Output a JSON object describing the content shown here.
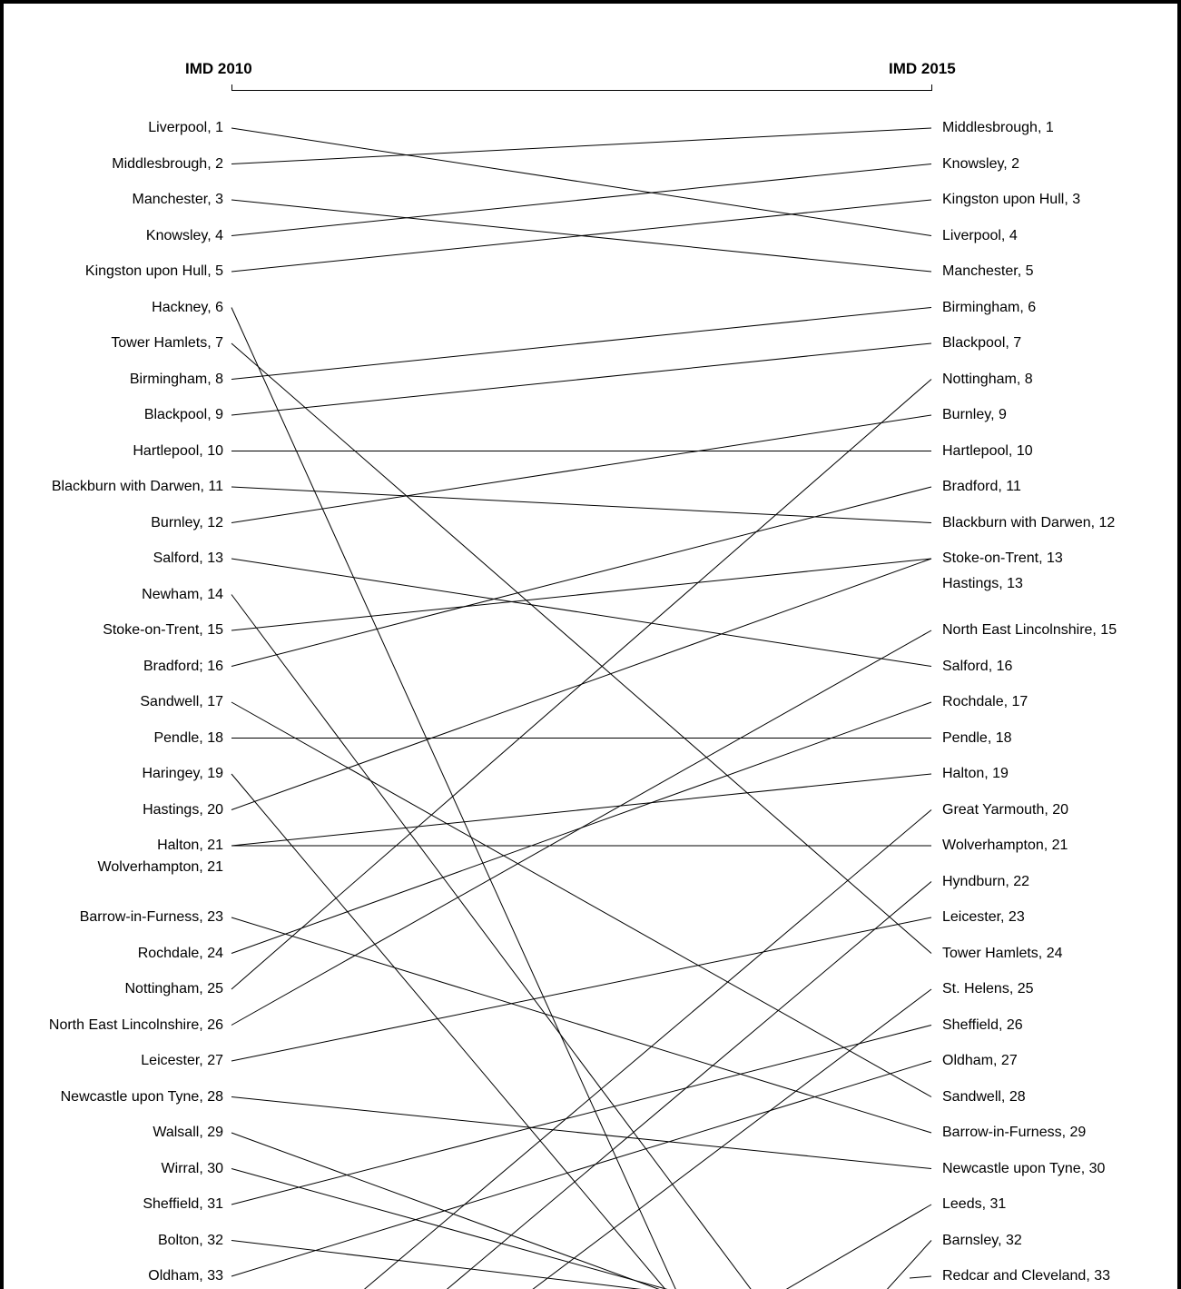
{
  "headers": {
    "left": "IMD 2010",
    "right": "IMD 2015"
  },
  "left_labels": [
    "Liverpool, 1",
    "Middlesbrough, 2",
    "Manchester, 3",
    "Knowsley, 4",
    "Kingston upon Hull, 5",
    "Hackney, 6",
    "Tower Hamlets, 7",
    "Birmingham, 8",
    "Blackpool, 9",
    "Hartlepool, 10",
    "Blackburn with Darwen, 11",
    "Burnley, 12",
    "Salford, 13",
    "Newham, 14",
    "Stoke-on-Trent, 15",
    "Bradford; 16",
    "Sandwell, 17",
    "Pendle, 18",
    "Haringey, 19",
    "Hastings, 20",
    "Halton, 21",
    "Wolverhampton, 21",
    "Barrow-in-Furness, 23",
    "Rochdale, 24",
    "Nottingham, 25",
    "North East Lincolnshire, 26",
    "Leicester, 27",
    "Newcastle upon Tyne, 28",
    "Walsall, 29",
    "Wirral, 30",
    "Sheffield, 31",
    "Bolton, 32",
    "Oldham, 33"
  ],
  "right_labels": [
    "Middlesbrough, 1",
    "Knowsley, 2",
    "Kingston upon Hull, 3",
    "Liverpool, 4",
    "Manchester, 5",
    "Birmingham, 6",
    "Blackpool, 7",
    "Nottingham, 8",
    "Burnley, 9",
    "Hartlepool, 10",
    "Bradford, 11",
    "Blackburn with Darwen, 12",
    "Stoke-on-Trent, 13",
    "Hastings, 13",
    "North East Lincolnshire, 15",
    "Salford, 16",
    "Rochdale, 17",
    "Pendle, 18",
    "Halton, 19",
    "Great Yarmouth, 20",
    "Wolverhampton, 21",
    "Hyndburn, 22",
    "Leicester, 23",
    "Tower Hamlets, 24",
    "St. Helens, 25",
    "Sheffield, 26",
    "Oldham, 27",
    "Sandwell, 28",
    "Barrow-in-Furness, 29",
    "Newcastle upon Tyne, 30",
    "Leeds, 31",
    "Barnsley, 32",
    "Redcar and Cleveland, 33"
  ],
  "connections": [
    {
      "from": 1,
      "to": 4
    },
    {
      "from": 2,
      "to": 1
    },
    {
      "from": 3,
      "to": 5
    },
    {
      "from": 4,
      "to": 2
    },
    {
      "from": 5,
      "to": 3
    },
    {
      "from": 6,
      "to": null
    },
    {
      "from": 7,
      "to": 24
    },
    {
      "from": 8,
      "to": 6
    },
    {
      "from": 9,
      "to": 7
    },
    {
      "from": 10,
      "to": 10
    },
    {
      "from": 11,
      "to": 12
    },
    {
      "from": 12,
      "to": 9
    },
    {
      "from": 13,
      "to": 16
    },
    {
      "from": 14,
      "to": null
    },
    {
      "from": 15,
      "to": 13
    },
    {
      "from": 16,
      "to": 11
    },
    {
      "from": 17,
      "to": 28
    },
    {
      "from": 18,
      "to": 18
    },
    {
      "from": 19,
      "to": null
    },
    {
      "from": 20,
      "to": 13
    },
    {
      "from": 21,
      "to": 19
    },
    {
      "from": 21,
      "to": 21
    },
    {
      "from": 23,
      "to": 29
    },
    {
      "from": 24,
      "to": 17
    },
    {
      "from": 25,
      "to": 8
    },
    {
      "from": 26,
      "to": 15
    },
    {
      "from": 27,
      "to": 23
    },
    {
      "from": 28,
      "to": 30
    },
    {
      "from": 29,
      "to": null
    },
    {
      "from": 30,
      "to": null
    },
    {
      "from": 31,
      "to": 26
    },
    {
      "from": 32,
      "to": null
    },
    {
      "from": 33,
      "to": 27
    },
    {
      "from": null,
      "to": 20
    },
    {
      "from": null,
      "to": 22
    },
    {
      "from": null,
      "to": 25
    },
    {
      "from": null,
      "to": 31
    },
    {
      "from": null,
      "to": 32
    },
    {
      "from": null,
      "to": 33
    }
  ]
}
